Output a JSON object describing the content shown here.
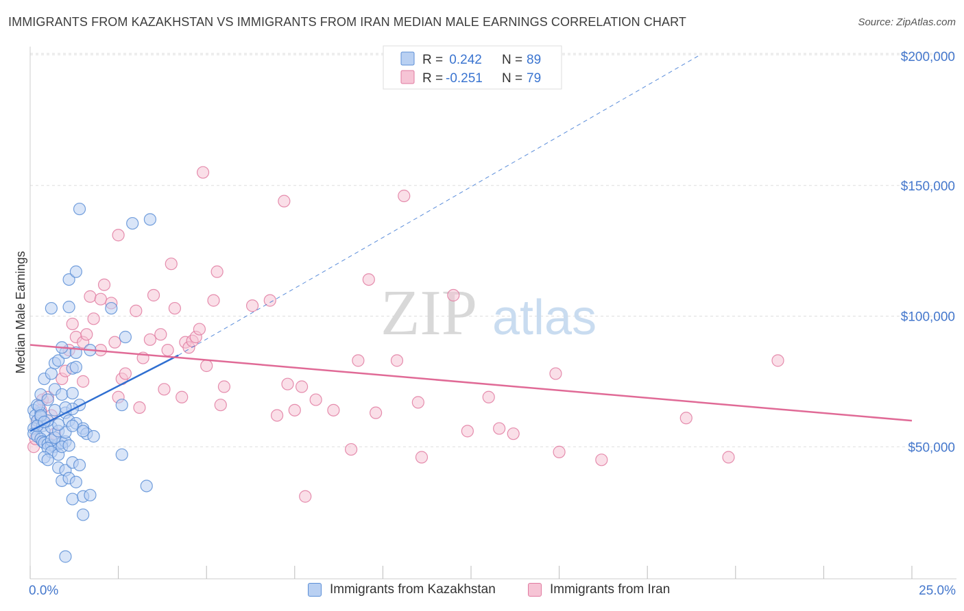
{
  "title": "IMMIGRANTS FROM KAZAKHSTAN VS IMMIGRANTS FROM IRAN MEDIAN MALE EARNINGS CORRELATION CHART",
  "source": "Source: ZipAtlas.com",
  "colors": {
    "blue": "#5b8ed6",
    "blue_fill": "#b9d0f2",
    "blue_line": "#2f6fd1",
    "pink": "#e07aa0",
    "pink_fill": "#f6c4d5",
    "pink_line": "#e06a96",
    "axis_label": "#4477cc",
    "grid": "#dddddd"
  },
  "legend_top": {
    "blue": {
      "r_label": "R =",
      "r_value": " 0.242",
      "n_label": "N =",
      "n_value": "89"
    },
    "pink": {
      "r_label": "R =",
      "r_value": "-0.251",
      "n_label": "N =",
      "n_value": "79"
    }
  },
  "watermark": {
    "zip": "ZIP",
    "atlas": "atlas"
  },
  "chart_data": {
    "type": "scatter",
    "title": "IMMIGRANTS FROM KAZAKHSTAN VS IMMIGRANTS FROM IRAN MEDIAN MALE EARNINGS CORRELATION CHART",
    "xlabel": "",
    "ylabel": "Median Male Earnings",
    "xlim": [
      0,
      25
    ],
    "ylim": [
      0,
      205000
    ],
    "x_tick_labels": [
      "0.0%",
      "25.0%"
    ],
    "y_ticks": [
      50000,
      100000,
      150000,
      200000
    ],
    "y_tick_labels": [
      "$50,000",
      "$100,000",
      "$150,000",
      "$200,000"
    ],
    "legend_position": "top-center",
    "series": [
      {
        "name": "Immigrants from Kazakhstan",
        "R": 0.242,
        "N": 89,
        "trend": {
          "x0": 0.0,
          "y0": 56000,
          "x1": 4.2,
          "y1": 85000,
          "dash_to_x": 19.0,
          "dash_to_y": 200000
        },
        "points": [
          [
            0.1,
            64000
          ],
          [
            0.15,
            62000
          ],
          [
            0.2,
            60000
          ],
          [
            0.1,
            57000
          ],
          [
            0.3,
            63000
          ],
          [
            0.2,
            66000
          ],
          [
            0.25,
            65500
          ],
          [
            0.3,
            61500
          ],
          [
            0.35,
            58000
          ],
          [
            0.4,
            56000
          ],
          [
            0.1,
            55000
          ],
          [
            0.2,
            54000
          ],
          [
            0.3,
            53000
          ],
          [
            0.35,
            52000
          ],
          [
            0.4,
            51500
          ],
          [
            0.5,
            51000
          ],
          [
            0.6,
            50500
          ],
          [
            0.7,
            50000
          ],
          [
            0.8,
            51000
          ],
          [
            0.9,
            51500
          ],
          [
            0.6,
            52500
          ],
          [
            0.7,
            53500
          ],
          [
            0.5,
            49500
          ],
          [
            0.6,
            48000
          ],
          [
            0.8,
            47000
          ],
          [
            1.0,
            52000
          ],
          [
            0.9,
            50000
          ],
          [
            1.1,
            50500
          ],
          [
            0.4,
            46000
          ],
          [
            0.5,
            45000
          ],
          [
            0.3,
            70000
          ],
          [
            0.5,
            68000
          ],
          [
            0.4,
            76000
          ],
          [
            0.6,
            78000
          ],
          [
            0.7,
            82000
          ],
          [
            0.8,
            83000
          ],
          [
            1.0,
            86000
          ],
          [
            0.9,
            88000
          ],
          [
            1.3,
            86000
          ],
          [
            1.2,
            80000
          ],
          [
            1.3,
            80500
          ],
          [
            0.7,
            72000
          ],
          [
            0.9,
            70000
          ],
          [
            1.2,
            70500
          ],
          [
            1.4,
            66000
          ],
          [
            1.0,
            63000
          ],
          [
            1.2,
            64500
          ],
          [
            1.1,
            60000
          ],
          [
            1.3,
            59000
          ],
          [
            1.5,
            57000
          ],
          [
            1.6,
            55000
          ],
          [
            1.8,
            54000
          ],
          [
            0.6,
            57500
          ],
          [
            0.8,
            56000
          ],
          [
            1.0,
            55500
          ],
          [
            1.2,
            58000
          ],
          [
            0.8,
            42000
          ],
          [
            1.0,
            41000
          ],
          [
            1.2,
            44000
          ],
          [
            1.4,
            43000
          ],
          [
            0.9,
            37000
          ],
          [
            1.1,
            38000
          ],
          [
            1.3,
            36500
          ],
          [
            1.2,
            30000
          ],
          [
            1.5,
            31000
          ],
          [
            1.7,
            31500
          ],
          [
            1.5,
            24000
          ],
          [
            1.0,
            8000
          ],
          [
            0.6,
            103000
          ],
          [
            1.1,
            103500
          ],
          [
            2.3,
            103000
          ],
          [
            1.1,
            114000
          ],
          [
            1.3,
            117000
          ],
          [
            1.4,
            141000
          ],
          [
            2.9,
            135500
          ],
          [
            3.4,
            137000
          ],
          [
            2.7,
            92000
          ],
          [
            1.7,
            87000
          ],
          [
            2.6,
            66000
          ],
          [
            2.6,
            47000
          ],
          [
            3.3,
            35000
          ],
          [
            1.0,
            65000
          ],
          [
            1.5,
            56000
          ],
          [
            0.8,
            58500
          ],
          [
            0.5,
            60000
          ],
          [
            0.3,
            62000
          ],
          [
            0.2,
            58000
          ],
          [
            0.4,
            59500
          ],
          [
            0.7,
            64000
          ]
        ]
      },
      {
        "name": "Immigrants from Iran",
        "R": -0.251,
        "N": 79,
        "trend": {
          "x0": 0.0,
          "y0": 89000,
          "x1": 25.0,
          "y1": 60000
        },
        "points": [
          [
            0.1,
            50000
          ],
          [
            0.15,
            53000
          ],
          [
            0.2,
            58000
          ],
          [
            0.3,
            64000
          ],
          [
            0.35,
            68000
          ],
          [
            0.2,
            60000
          ],
          [
            0.5,
            69000
          ],
          [
            0.6,
            62000
          ],
          [
            0.7,
            55000
          ],
          [
            0.9,
            76000
          ],
          [
            1.0,
            79000
          ],
          [
            1.1,
            87000
          ],
          [
            1.3,
            92000
          ],
          [
            1.2,
            97000
          ],
          [
            1.5,
            90000
          ],
          [
            1.6,
            93000
          ],
          [
            1.5,
            75000
          ],
          [
            1.7,
            107500
          ],
          [
            1.8,
            99000
          ],
          [
            2.0,
            106500
          ],
          [
            2.1,
            112000
          ],
          [
            2.3,
            105000
          ],
          [
            2.4,
            90000
          ],
          [
            2.0,
            87000
          ],
          [
            2.5,
            69000
          ],
          [
            2.6,
            76000
          ],
          [
            2.7,
            78000
          ],
          [
            2.5,
            131000
          ],
          [
            3.0,
            102000
          ],
          [
            3.1,
            65000
          ],
          [
            3.2,
            84000
          ],
          [
            3.4,
            91000
          ],
          [
            3.5,
            108000
          ],
          [
            3.7,
            93000
          ],
          [
            3.9,
            87000
          ],
          [
            3.8,
            72000
          ],
          [
            4.0,
            120000
          ],
          [
            4.1,
            103000
          ],
          [
            4.3,
            69000
          ],
          [
            4.4,
            90000
          ],
          [
            4.5,
            88000
          ],
          [
            4.6,
            90500
          ],
          [
            4.7,
            92000
          ],
          [
            4.8,
            95000
          ],
          [
            4.9,
            155000
          ],
          [
            5.0,
            81000
          ],
          [
            5.2,
            106000
          ],
          [
            5.3,
            117000
          ],
          [
            5.4,
            66000
          ],
          [
            5.5,
            73000
          ],
          [
            6.3,
            104000
          ],
          [
            6.8,
            106000
          ],
          [
            7.0,
            62000
          ],
          [
            7.2,
            144000
          ],
          [
            7.3,
            74000
          ],
          [
            7.5,
            64000
          ],
          [
            7.7,
            73000
          ],
          [
            7.8,
            31000
          ],
          [
            8.1,
            68000
          ],
          [
            8.6,
            64000
          ],
          [
            9.1,
            49000
          ],
          [
            9.3,
            83000
          ],
          [
            9.6,
            114000
          ],
          [
            9.8,
            63000
          ],
          [
            10.4,
            83000
          ],
          [
            10.6,
            146000
          ],
          [
            11.0,
            67000
          ],
          [
            11.1,
            46000
          ],
          [
            12.0,
            108000
          ],
          [
            12.4,
            56000
          ],
          [
            13.0,
            69000
          ],
          [
            13.3,
            57000
          ],
          [
            13.7,
            55000
          ],
          [
            14.9,
            78000
          ],
          [
            15.0,
            48000
          ],
          [
            16.2,
            45000
          ],
          [
            18.6,
            61000
          ],
          [
            19.8,
            46000
          ],
          [
            21.2,
            83000
          ]
        ]
      }
    ]
  },
  "legend_bottom": {
    "blue_label": "Immigrants from Kazakhstan",
    "pink_label": "Immigrants from Iran"
  }
}
